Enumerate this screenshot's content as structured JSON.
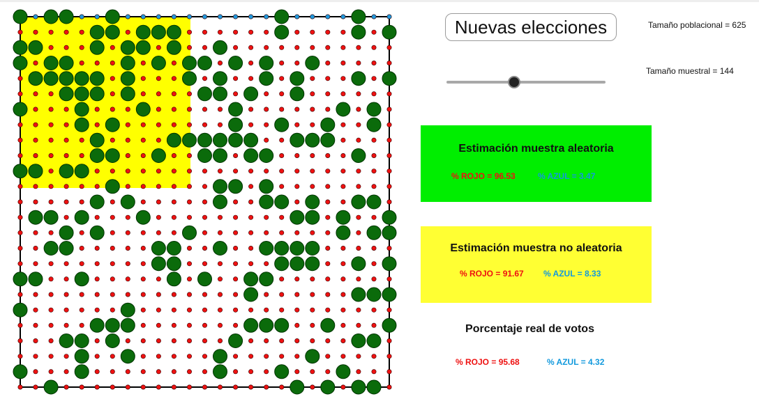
{
  "button": {
    "label": "Nuevas elecciones"
  },
  "population_size_label": "Tamaño poblacional = 625",
  "sample_size_label": "Tamaño muestral = 144",
  "slider": {
    "value": 144,
    "min": 0,
    "max": 625
  },
  "random_panel": {
    "title": "Estimación muestra aleatoria",
    "rojo": "% ROJO = 96.53",
    "azul": "% AZUL = 3.47",
    "color": "#00ee00"
  },
  "nonrandom_panel": {
    "title": "Estimación muestra no aleatoria",
    "rojo": "% ROJO = 91.67",
    "azul": "% AZUL = 8.33",
    "color": "#ffff33"
  },
  "real_votes": {
    "title": "Porcentaje real de votos",
    "rojo": "% ROJO = 95.68",
    "azul": "% AZUL = 4.32"
  },
  "colors": {
    "red_dot": "#ee1111",
    "blue_dot": "#2299dd",
    "sampled_dot": "#0b6b0b",
    "nonrandom_region": "#ffff00"
  }
}
